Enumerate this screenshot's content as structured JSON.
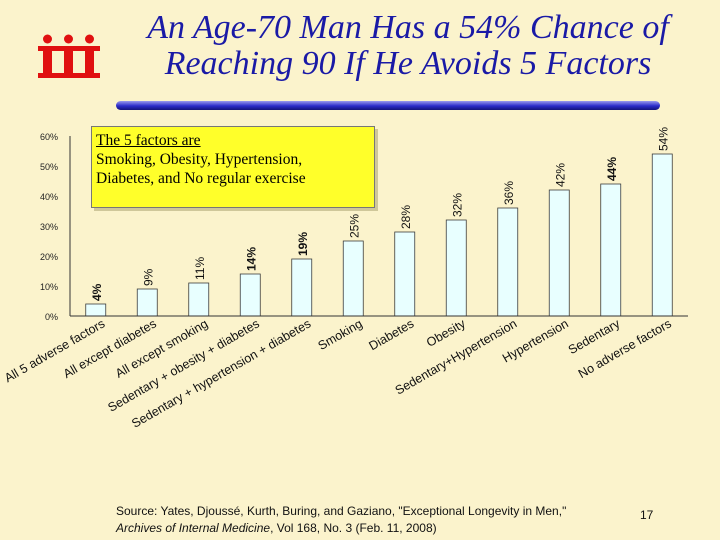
{
  "slide": {
    "title_line1": "An Age-70 Man Has a 54% Chance of",
    "title_line2": "Reaching 90 If He Avoids 5 Factors",
    "logo_glyphs": "iii",
    "page_number": "17",
    "colors": {
      "title": "#1a1aa6",
      "logo": "#e01010",
      "bar_fill": "#e8ffff",
      "callout_bg": "#ffff2a",
      "background": "#fbf3cc"
    }
  },
  "callout": {
    "line1": "The 5 factors are",
    "line2": "Smoking, Obesity, Hypertension,",
    "line3": "Diabetes, and No regular exercise"
  },
  "source": {
    "line1": "Source: Yates, Djoussé, Kurth, Buring, and Gaziano, \"Exceptional Longevity in Men,\"",
    "journal": "Archives of Internal Medicine",
    "line2_rest": ", Vol 168, No. 3 (Feb. 11, 2008)"
  },
  "chart_data": {
    "type": "bar",
    "title": "",
    "xlabel": "",
    "ylabel": "",
    "ylim": [
      0,
      60
    ],
    "yticks": [
      "0%",
      "10%",
      "20%",
      "30%",
      "40%",
      "50%",
      "60%"
    ],
    "grid": false,
    "categories": [
      "All 5 adverse factors",
      "All except diabetes",
      "All except smoking",
      "Sedentary + obesity + diabetes",
      "Sedentary + hypertension + diabetes",
      "Smoking",
      "Diabetes",
      "Obesity",
      "Sedentary+Hypertension",
      "Hypertension",
      "Sedentary",
      "No adverse factors"
    ],
    "values": [
      4,
      9,
      11,
      14,
      19,
      25,
      28,
      32,
      36,
      42,
      44,
      54
    ],
    "value_labels": [
      "4%",
      "9%",
      "11%",
      "14%",
      "19%",
      "25%",
      "28%",
      "32%",
      "36%",
      "42%",
      "44%",
      "54%"
    ],
    "bold_labels": [
      true,
      false,
      false,
      true,
      true,
      false,
      false,
      false,
      false,
      false,
      true,
      false
    ]
  }
}
